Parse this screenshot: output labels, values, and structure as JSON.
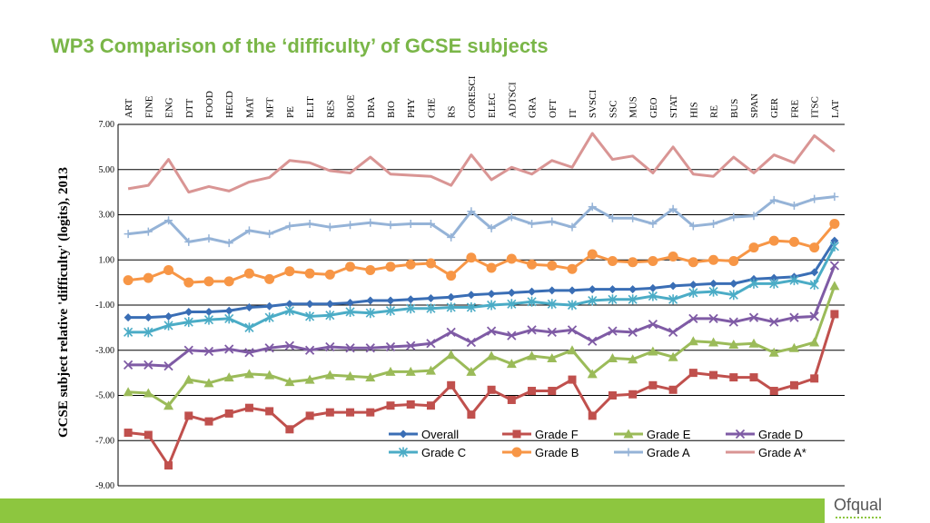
{
  "page": {
    "title": "WP3  Comparison of the ‘difficulty’ of GCSE subjects",
    "logo": "Ofqual"
  },
  "chart_data": {
    "type": "line",
    "title": "",
    "ylabel": "GCSE subject relative 'difficulty' (logits), 2013",
    "xlabel": "",
    "ylim": [
      -9,
      7
    ],
    "yticks": [
      "7.00",
      "5.00",
      "3.00",
      "1.00",
      "-1.00",
      "-3.00",
      "-5.00",
      "-7.00",
      "-9.00"
    ],
    "categories": [
      "ART",
      "FINE",
      "ENG",
      "DTT",
      "FOOD",
      "HECD",
      "MAT",
      "MFT",
      "PE",
      "ELIT",
      "RES",
      "BIOE",
      "DRA",
      "BIO",
      "PHY",
      "CHE",
      "RS",
      "CORESCI",
      "ELEC",
      "ADTSCI",
      "GRA",
      "OFT",
      "IT",
      "SVSCI",
      "SSC",
      "MUS",
      "GEO",
      "STAT",
      "HIS",
      "RE",
      "BUS",
      "SPAN",
      "GER",
      "FRE",
      "ITSC",
      "LAT"
    ],
    "series": [
      {
        "name": "Overall",
        "color": "#3a6eb5",
        "marker": "diamond",
        "values": [
          -1.55,
          -1.55,
          -1.5,
          -1.3,
          -1.3,
          -1.25,
          -1.1,
          -1.05,
          -0.95,
          -0.95,
          -0.95,
          -0.9,
          -0.8,
          -0.8,
          -0.75,
          -0.7,
          -0.65,
          -0.55,
          -0.5,
          -0.45,
          -0.4,
          -0.35,
          -0.35,
          -0.3,
          -0.3,
          -0.3,
          -0.25,
          -0.15,
          -0.1,
          -0.05,
          -0.05,
          0.15,
          0.2,
          0.25,
          0.45,
          1.85
        ]
      },
      {
        "name": "Grade F",
        "color": "#c0504d",
        "marker": "square",
        "values": [
          -6.65,
          -6.75,
          -8.1,
          -5.9,
          -6.15,
          -5.8,
          -5.55,
          -5.7,
          -6.5,
          -5.9,
          -5.75,
          -5.75,
          -5.75,
          -5.45,
          -5.4,
          -5.45,
          -4.55,
          -5.85,
          -4.75,
          -5.2,
          -4.8,
          -4.8,
          -4.3,
          -5.9,
          -5.0,
          -4.95,
          -4.55,
          -4.75,
          -4.0,
          -4.1,
          -4.2,
          -4.2,
          -4.8,
          -4.55,
          -4.25,
          -1.4
        ]
      },
      {
        "name": "Grade E",
        "color": "#9bbb59",
        "marker": "triangle",
        "values": [
          -4.85,
          -4.9,
          -5.45,
          -4.3,
          -4.45,
          -4.2,
          -4.05,
          -4.1,
          -4.4,
          -4.3,
          -4.1,
          -4.15,
          -4.2,
          -3.95,
          -3.95,
          -3.9,
          -3.2,
          -3.95,
          -3.25,
          -3.6,
          -3.25,
          -3.35,
          -3.0,
          -4.05,
          -3.35,
          -3.4,
          -3.05,
          -3.3,
          -2.6,
          -2.65,
          -2.75,
          -2.7,
          -3.1,
          -2.9,
          -2.65,
          -0.15
        ]
      },
      {
        "name": "Grade D",
        "color": "#7f5ba5",
        "marker": "x",
        "values": [
          -3.65,
          -3.65,
          -3.7,
          -3.0,
          -3.05,
          -2.95,
          -3.1,
          -2.9,
          -2.8,
          -3.0,
          -2.85,
          -2.9,
          -2.9,
          -2.85,
          -2.8,
          -2.7,
          -2.2,
          -2.65,
          -2.15,
          -2.35,
          -2.1,
          -2.2,
          -2.1,
          -2.6,
          -2.15,
          -2.2,
          -1.85,
          -2.2,
          -1.6,
          -1.6,
          -1.75,
          -1.55,
          -1.75,
          -1.55,
          -1.5,
          0.75
        ]
      },
      {
        "name": "Grade C",
        "color": "#4bacc6",
        "marker": "star",
        "values": [
          -2.2,
          -2.2,
          -1.9,
          -1.75,
          -1.65,
          -1.6,
          -2.0,
          -1.55,
          -1.25,
          -1.5,
          -1.45,
          -1.3,
          -1.35,
          -1.25,
          -1.15,
          -1.15,
          -1.1,
          -1.1,
          -1.0,
          -0.95,
          -0.85,
          -0.95,
          -1.0,
          -0.8,
          -0.75,
          -0.75,
          -0.6,
          -0.75,
          -0.45,
          -0.4,
          -0.55,
          -0.05,
          -0.05,
          0.1,
          -0.1,
          1.6
        ]
      },
      {
        "name": "Grade B",
        "color": "#f79646",
        "marker": "circle",
        "values": [
          0.1,
          0.2,
          0.55,
          0.0,
          0.05,
          0.05,
          0.4,
          0.15,
          0.5,
          0.4,
          0.35,
          0.7,
          0.55,
          0.7,
          0.8,
          0.85,
          0.3,
          1.1,
          0.65,
          1.05,
          0.8,
          0.75,
          0.6,
          1.25,
          0.95,
          0.9,
          0.95,
          1.15,
          0.9,
          1.0,
          0.95,
          1.55,
          1.85,
          1.8,
          1.55,
          2.6
        ]
      },
      {
        "name": "Grade A",
        "color": "#95b3d7",
        "marker": "plus",
        "values": [
          2.15,
          2.25,
          2.75,
          1.8,
          1.95,
          1.75,
          2.3,
          2.15,
          2.5,
          2.6,
          2.45,
          2.55,
          2.65,
          2.55,
          2.6,
          2.6,
          2.0,
          3.15,
          2.4,
          2.9,
          2.6,
          2.7,
          2.45,
          3.35,
          2.85,
          2.85,
          2.6,
          3.25,
          2.5,
          2.6,
          2.9,
          2.95,
          3.65,
          3.4,
          3.7,
          3.8
        ]
      },
      {
        "name": "Grade A*",
        "color": "#d99594",
        "marker": "none",
        "values": [
          4.15,
          4.3,
          5.45,
          4.0,
          4.25,
          4.05,
          4.45,
          4.65,
          5.4,
          5.3,
          4.95,
          4.85,
          5.55,
          4.8,
          4.75,
          4.7,
          4.3,
          5.65,
          4.55,
          5.1,
          4.8,
          5.4,
          5.1,
          6.6,
          5.45,
          5.6,
          4.85,
          6.0,
          4.8,
          4.7,
          5.55,
          4.85,
          5.65,
          5.3,
          6.5,
          5.8
        ]
      }
    ],
    "legend_position": "bottom-right inside",
    "grid": true
  }
}
